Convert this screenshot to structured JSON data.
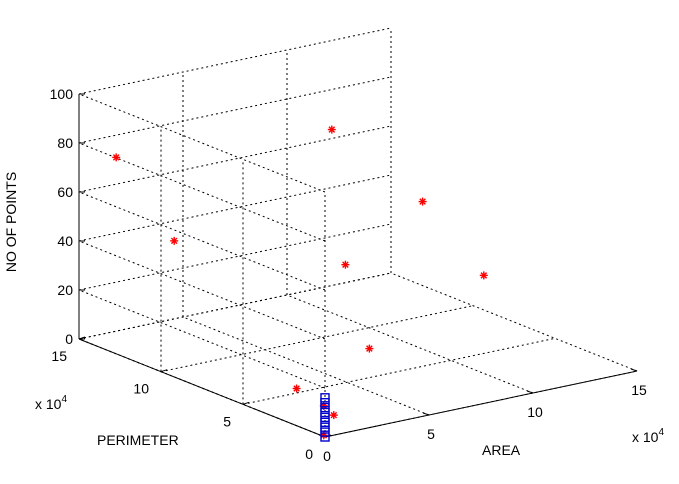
{
  "chart_data": {
    "type": "scatter3d",
    "title": "",
    "xlabel": "AREA",
    "ylabel": "PERIMETER",
    "zlabel": "NO OF POINTS",
    "x_multiplier": "x 10",
    "y_multiplier": "x 10",
    "multiplier_exponent": "4",
    "xlim": [
      0,
      150000
    ],
    "ylim": [
      0,
      150000
    ],
    "zlim": [
      0,
      100
    ],
    "x_ticks": [
      "0",
      "5",
      "10",
      "15"
    ],
    "y_ticks": [
      "0",
      "5",
      "10",
      "15"
    ],
    "z_ticks": [
      "0",
      "20",
      "40",
      "60",
      "80",
      "100"
    ],
    "grid": true,
    "series": [
      {
        "marker": "asterisk",
        "color": "#ff0000",
        "points": [
          {
            "x": 10000,
            "y": 140000,
            "z": 75
          },
          {
            "x": 30000,
            "y": 130000,
            "z": 40
          },
          {
            "x": 90000,
            "y": 110000,
            "z": 80
          },
          {
            "x": 110000,
            "y": 80000,
            "z": 55
          },
          {
            "x": 100000,
            "y": 30000,
            "z": 40
          },
          {
            "x": 65000,
            "y": 70000,
            "z": 40
          },
          {
            "x": 45000,
            "y": 30000,
            "z": 20
          },
          {
            "x": 10000,
            "y": 30000,
            "z": 10
          },
          {
            "x": 20000,
            "y": 20000,
            "z": 0
          },
          {
            "x": 1000,
            "y": 2000,
            "z": 0
          },
          {
            "x": 1000,
            "y": 2000,
            "z": 12
          }
        ]
      },
      {
        "marker": "square",
        "color": "#0000cc",
        "points": [
          {
            "x": 0,
            "y": 0,
            "z": 0
          },
          {
            "x": 0,
            "y": 0,
            "z": 2
          },
          {
            "x": 0,
            "y": 0,
            "z": 4
          },
          {
            "x": 0,
            "y": 0,
            "z": 6
          },
          {
            "x": 0,
            "y": 0,
            "z": 8
          },
          {
            "x": 0,
            "y": 0,
            "z": 10
          },
          {
            "x": 0,
            "y": 0,
            "z": 12
          },
          {
            "x": 0,
            "y": 0,
            "z": 14
          },
          {
            "x": 0,
            "y": 0,
            "z": 16
          }
        ]
      }
    ]
  }
}
